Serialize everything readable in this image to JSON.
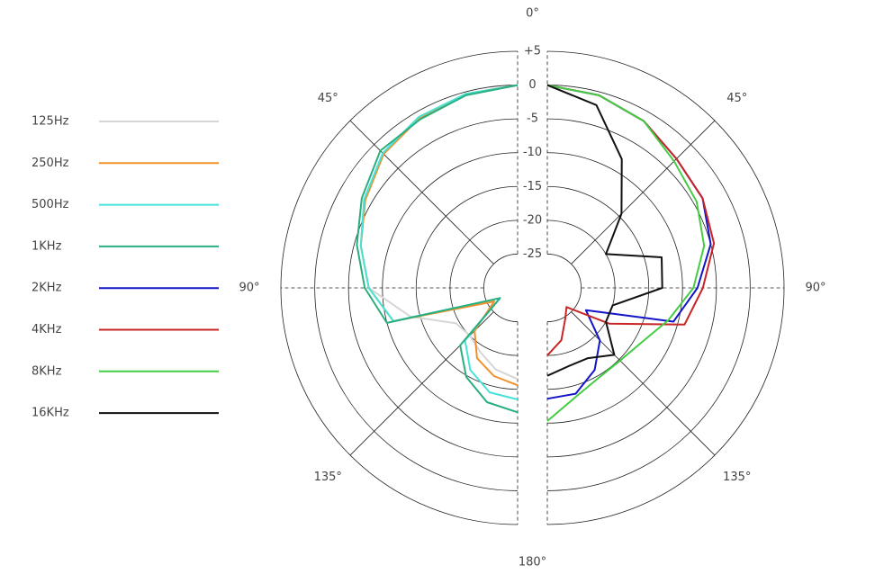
{
  "chart_data": {
    "type": "polar",
    "theta": [
      0,
      15,
      30,
      45,
      60,
      75,
      90,
      105,
      120,
      135,
      150,
      165,
      180
    ],
    "rlim": [
      -30,
      5
    ],
    "rticks": [
      {
        "value": 5,
        "label": "+5"
      },
      0,
      -5,
      -10,
      -15,
      -20,
      -25
    ],
    "thetaticks": [
      {
        "value": 0,
        "label": "0°"
      },
      {
        "value": 45,
        "label": "45°"
      },
      {
        "value": 90,
        "label": "90°"
      },
      {
        "value": 135,
        "label": "135°"
      },
      {
        "value": 180,
        "label": "180°"
      }
    ],
    "legend": "left",
    "series": [
      {
        "name": "125Hz",
        "color": "#d6d6d6",
        "side": "left",
        "values": [
          0,
          -0.3,
          -0.8,
          -1.8,
          -3.8,
          -6,
          -8,
          -13.6,
          -19.5,
          -20,
          -19,
          -17.5,
          -16.5
        ]
      },
      {
        "name": "250Hz",
        "color": "#f0902a",
        "side": "left",
        "values": [
          0,
          -0.3,
          -1,
          -2,
          -4,
          -6,
          -8,
          -11,
          -26,
          -21,
          -18,
          -16.5,
          -15.6
        ]
      },
      {
        "name": "500Hz",
        "color": "#45e3d8",
        "side": "left",
        "values": [
          0,
          -0.3,
          -0.8,
          -1.8,
          -3.8,
          -6,
          -8,
          -11,
          -27,
          -19,
          -16,
          -14,
          -13.5
        ]
      },
      {
        "name": "1KHz",
        "color": "#2aae80",
        "side": "left",
        "values": [
          0,
          -0.5,
          -1.2,
          -1.3,
          -3.4,
          -5.4,
          -7.4,
          -10,
          -27,
          -18,
          -14.8,
          -12.5,
          -11.6
        ]
      },
      {
        "name": "2KHz",
        "color": "#1414c8",
        "side": "right",
        "values": [
          0,
          -0.5,
          -1.5,
          -3,
          -3.5,
          -5,
          -7.8,
          -10.7,
          -23.4,
          -19,
          -16,
          -13.8,
          -13.6
        ]
      },
      {
        "name": "4KHz",
        "color": "#c82626",
        "side": "right",
        "values": [
          0,
          -0.5,
          -1.5,
          -3,
          -3.5,
          -4.5,
          -7,
          -9,
          -19.4,
          -26,
          -24.7,
          -22,
          -20
        ]
      },
      {
        "name": "8KHz",
        "color": "#44cc44",
        "side": "right",
        "values": [
          0,
          -0.5,
          -1.5,
          -3.5,
          -4.5,
          -6,
          -8.4,
          -11.5,
          -13.9,
          -14.8,
          -14.7,
          -13.4,
          -10.3
        ]
      },
      {
        "name": "16KHz",
        "color": "#111111",
        "side": "right",
        "values": [
          0,
          -2,
          -8,
          -14.5,
          -20,
          -12.5,
          -13,
          -20,
          -20,
          -16,
          -18,
          -18,
          -17
        ]
      }
    ]
  }
}
